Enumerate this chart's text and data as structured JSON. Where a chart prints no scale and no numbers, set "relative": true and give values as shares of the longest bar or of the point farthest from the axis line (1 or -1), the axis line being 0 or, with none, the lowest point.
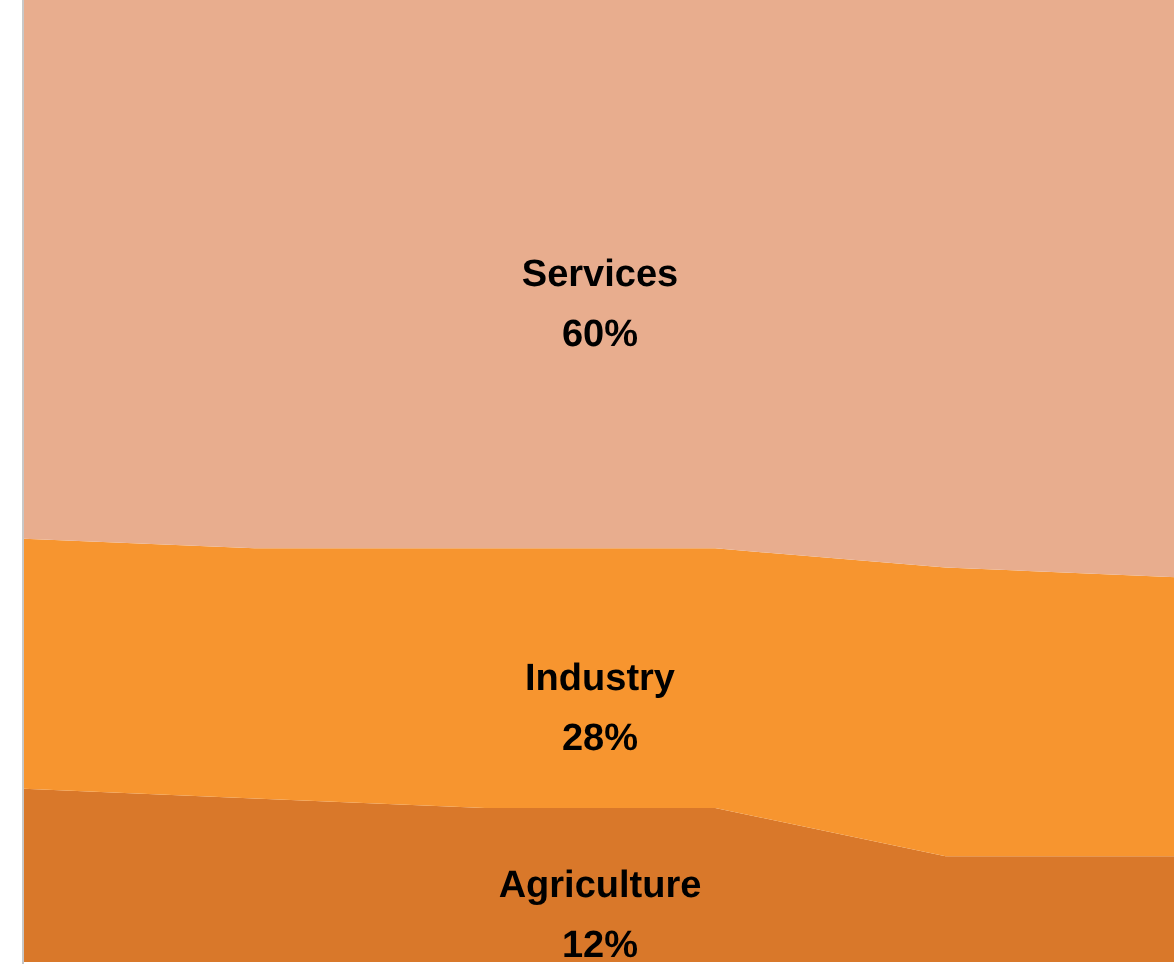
{
  "chart_data": {
    "type": "area",
    "stacked": true,
    "relative": true,
    "categories": [
      null,
      null,
      null,
      null,
      null,
      null
    ],
    "series": [
      {
        "name": "Agriculture",
        "color": "#d9782a",
        "values": [
          0.18,
          0.17,
          0.16,
          0.16,
          0.11,
          0.11
        ]
      },
      {
        "name": "Industry",
        "color": "#f7952f",
        "values": [
          0.26,
          0.26,
          0.27,
          0.27,
          0.3,
          0.29
        ]
      },
      {
        "name": "Services",
        "color": "#e8ad8e",
        "values": [
          0.56,
          0.57,
          0.57,
          0.57,
          0.59,
          0.6
        ]
      }
    ],
    "annotations": [
      "12%",
      "28%",
      "60%"
    ]
  }
}
